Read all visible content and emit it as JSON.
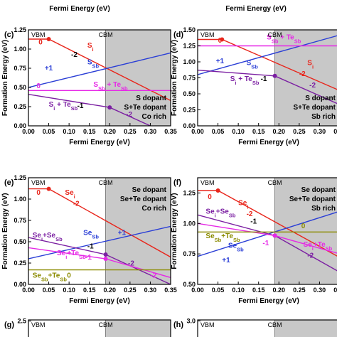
{
  "top_strip": {
    "xlabel": "Fermi Energy (eV)"
  },
  "chart_data": [
    {
      "panel": "(c)",
      "type": "line",
      "xlabel": "Fermi Energy (eV)",
      "ylabel": "Formation Energy (eV)",
      "xlim": [
        0,
        0.35
      ],
      "ylim": [
        0,
        1.25
      ],
      "xticks": [
        "0.00",
        "0.05",
        "0.10",
        "0.15",
        "0.20",
        "0.25",
        "0.30",
        "0.35"
      ],
      "yticks": [
        "0.00",
        "0.25",
        "0.50",
        "0.75",
        "1.00",
        "1.25"
      ],
      "vbm_label": "VBM",
      "cbm_label": "CBM",
      "cbm_x": 0.19,
      "grid": false,
      "notes": [
        "S dopant",
        "S+Te dopant",
        "Co rich"
      ],
      "notes_anchor": "bottom-right",
      "series": [
        {
          "name": "Si",
          "color": "#e8261c",
          "points": [
            [
              0,
              1.13
            ],
            [
              0.05,
              1.13
            ],
            [
              0.35,
              0.33
            ]
          ],
          "markers": [
            [
              0.05,
              1.13
            ]
          ],
          "labels": [
            {
              "text": "Si",
              "x": 0.145,
              "y": 1.02,
              "color": "#e8261c"
            },
            {
              "text": "0",
              "x": 0.025,
              "y": 1.06,
              "color": "#e8261c"
            },
            {
              "text": "-2",
              "x": 0.105,
              "y": 0.9,
              "color": "#000000"
            }
          ]
        },
        {
          "name": "SSb",
          "color": "#2a3ed6",
          "points": [
            [
              0,
              0.5
            ],
            [
              0.35,
              0.95
            ]
          ],
          "markers": [],
          "labels": [
            {
              "text": "SSb",
              "x": 0.145,
              "y": 0.8,
              "color": "#2a3ed6"
            },
            {
              "text": "+1",
              "x": 0.04,
              "y": 0.72,
              "color": "#2a3ed6"
            }
          ]
        },
        {
          "name": "SSb + TeSb",
          "color": "#e628e6",
          "points": [
            [
              0,
              0.46
            ],
            [
              0.35,
              0.46
            ]
          ],
          "markers": [],
          "labels": [
            {
              "text": "SSb + TeSb",
              "x": 0.16,
              "y": 0.51,
              "color": "#e628e6"
            },
            {
              "text": "0",
              "x": 0.02,
              "y": 0.49,
              "color": "#e628e6"
            }
          ]
        },
        {
          "name": "Si + TeSb",
          "color": "#7b1fa2",
          "points": [
            [
              0,
              0.41
            ],
            [
              0.2,
              0.24
            ],
            [
              0.3,
              0.0
            ]
          ],
          "markers": [
            [
              0.2,
              0.24
            ]
          ],
          "labels": [
            {
              "text": "Si + TeSb",
              "x": 0.05,
              "y": 0.25,
              "color": "#7b1fa2"
            },
            {
              "text": "-1",
              "x": 0.12,
              "y": 0.23,
              "color": "#000000"
            },
            {
              "text": "-2",
              "x": 0.24,
              "y": 0.12,
              "color": "#7b1fa2"
            }
          ]
        }
      ]
    },
    {
      "panel": "(d)",
      "type": "line",
      "xlabel": "Fermi Energy (eV)",
      "ylabel": "Formation Energy (eV)",
      "xlim": [
        0,
        0.35
      ],
      "ylim": [
        0,
        1.5
      ],
      "xticks": [
        "0.00",
        "0.05",
        "0.10",
        "0.15",
        "0.20",
        "0.25",
        "0.30",
        "0.35"
      ],
      "yticks": [
        "0.00",
        "0.25",
        "0.50",
        "0.75",
        "1.00",
        "1.25",
        "1.50"
      ],
      "vbm_label": "VBM",
      "cbm_label": "CBM",
      "cbm_x": 0.19,
      "grid": false,
      "notes": [
        "S dopant",
        "S+Te dopant",
        "Sb rich"
      ],
      "notes_anchor": "bottom-right",
      "series": [
        {
          "name": "Si",
          "color": "#e8261c",
          "points": [
            [
              0,
              1.35
            ],
            [
              0.06,
              1.35
            ],
            [
              0.35,
              0.55
            ]
          ],
          "markers": [
            [
              0.06,
              1.35
            ]
          ],
          "labels": [
            {
              "text": "Si",
              "x": 0.27,
              "y": 0.95,
              "color": "#e8261c"
            },
            {
              "text": "0",
              "x": 0.05,
              "y": 1.3,
              "color": "#e8261c"
            },
            {
              "text": "-2",
              "x": 0.25,
              "y": 0.78,
              "color": "#e8261c"
            }
          ]
        },
        {
          "name": "SSb",
          "color": "#2a3ed6",
          "points": [
            [
              0,
              0.8
            ],
            [
              0.35,
              1.42
            ]
          ],
          "markers": [],
          "labels": [
            {
              "text": "SSb",
              "x": 0.12,
              "y": 0.95,
              "color": "#2a3ed6"
            },
            {
              "text": "+1",
              "x": 0.045,
              "y": 0.98,
              "color": "#2a3ed6"
            }
          ]
        },
        {
          "name": "SSb + TeSb",
          "color": "#e628e6",
          "points": [
            [
              0,
              1.25
            ],
            [
              0.35,
              1.25
            ]
          ],
          "markers": [],
          "labels": [
            {
              "text": "SSb + TeSb",
              "x": 0.17,
              "y": 1.35,
              "color": "#e628e6"
            }
          ]
        },
        {
          "name": "Si + TeSb",
          "color": "#7b1fa2",
          "points": [
            [
              0,
              0.87
            ],
            [
              0.19,
              0.78
            ],
            [
              0.35,
              0.33
            ]
          ],
          "markers": [
            [
              0.19,
              0.78
            ]
          ],
          "labels": [
            {
              "text": "Si + TeSb",
              "x": 0.08,
              "y": 0.7,
              "color": "#7b1fa2"
            },
            {
              "text": "-1",
              "x": 0.155,
              "y": 0.7,
              "color": "#000000"
            },
            {
              "text": "-2",
              "x": 0.275,
              "y": 0.6,
              "color": "#7b1fa2"
            }
          ]
        }
      ]
    },
    {
      "panel": "(e)",
      "type": "line",
      "xlabel": "Fermi Energy (eV)",
      "ylabel": "Formation Energy (eV)",
      "xlim": [
        0,
        0.35
      ],
      "ylim": [
        0,
        1.25
      ],
      "xticks": [
        "0.00",
        "0.05",
        "0.10",
        "0.15",
        "0.20",
        "0.25",
        "0.30",
        "0.35"
      ],
      "yticks": [
        "0.00",
        "0.25",
        "0.50",
        "0.75",
        "1.00",
        "1.25"
      ],
      "vbm_label": "VBM",
      "cbm_label": "CBM",
      "cbm_x": 0.19,
      "grid": false,
      "notes": [
        "Se dopant",
        "Se+Te dopant",
        "Co rich"
      ],
      "notes_anchor": "top-right",
      "series": [
        {
          "name": "Sei",
          "color": "#e8261c",
          "points": [
            [
              0,
              1.12
            ],
            [
              0.05,
              1.12
            ],
            [
              0.35,
              0.32
            ]
          ],
          "markers": [
            [
              0.05,
              1.12
            ]
          ],
          "labels": [
            {
              "text": "Sei",
              "x": 0.09,
              "y": 1.05,
              "color": "#e8261c"
            },
            {
              "text": "0",
              "x": 0.02,
              "y": 1.05,
              "color": "#e8261c"
            },
            {
              "text": "-2",
              "x": 0.11,
              "y": 0.92,
              "color": "#e8261c"
            }
          ]
        },
        {
          "name": "SeSb",
          "color": "#2a3ed6",
          "points": [
            [
              0,
              0.3
            ],
            [
              0.35,
              0.68
            ]
          ],
          "markers": [],
          "labels": [
            {
              "text": "SeSb",
              "x": 0.135,
              "y": 0.58,
              "color": "#2a3ed6"
            },
            {
              "text": "+1",
              "x": 0.22,
              "y": 0.58,
              "color": "#2a3ed6"
            }
          ]
        },
        {
          "name": "Sei+SeSb",
          "color": "#7b1fa2",
          "points": [
            [
              0,
              0.55
            ],
            [
              0.19,
              0.35
            ],
            [
              0.35,
              0.0
            ]
          ],
          "markers": [
            [
              0.19,
              0.35
            ]
          ],
          "labels": [
            {
              "text": "Sei+SeSb",
              "x": 0.01,
              "y": 0.55,
              "color": "#7b1fa2"
            },
            {
              "text": "-1",
              "x": 0.145,
              "y": 0.42,
              "color": "#000000"
            },
            {
              "text": "-2",
              "x": 0.245,
              "y": 0.22,
              "color": "#7b1fa2"
            }
          ]
        },
        {
          "name": "Sei+TeSb",
          "color": "#e628e6",
          "points": [
            [
              0,
              0.43
            ],
            [
              0.19,
              0.3
            ],
            [
              0.35,
              0.08
            ]
          ],
          "markers": [
            [
              0.19,
              0.3
            ]
          ],
          "labels": [
            {
              "text": "Sei+TeSb",
              "x": 0.07,
              "y": 0.34,
              "color": "#e628e6"
            },
            {
              "text": "-1",
              "x": 0.14,
              "y": 0.29,
              "color": "#e628e6"
            },
            {
              "text": "-2",
              "x": 0.3,
              "y": 0.08,
              "color": "#e628e6"
            }
          ]
        },
        {
          "name": "SeSb+TeSb",
          "color": "#8b8b00",
          "points": [
            [
              0,
              0.17
            ],
            [
              0.35,
              0.17
            ]
          ],
          "markers": [],
          "labels": [
            {
              "text": "SeSb+TeSb",
              "x": 0.01,
              "y": 0.08,
              "color": "#8b8b00"
            },
            {
              "text": "0",
              "x": 0.095,
              "y": 0.08,
              "color": "#8b8b00"
            }
          ]
        }
      ]
    },
    {
      "panel": "(f)",
      "type": "line",
      "xlabel": "Fermi Energy (eV)",
      "ylabel": "Formation Energy (eV)",
      "xlim": [
        0,
        0.35
      ],
      "ylim": [
        0.5,
        1.375
      ],
      "xticks": [
        "0.00",
        "0.05",
        "0.10",
        "0.15",
        "0.20",
        "0.25",
        "0.30",
        "0.35"
      ],
      "yticks": [
        "0.50",
        "0.75",
        "1.00",
        "1.25"
      ],
      "vbm_label": "VBM",
      "cbm_label": "CBM",
      "cbm_x": 0.19,
      "grid": false,
      "notes": [
        "Se dopant",
        "Se+Te dopant",
        "Sb rich"
      ],
      "notes_anchor": "top-right",
      "series": [
        {
          "name": "Sei",
          "color": "#e8261c",
          "points": [
            [
              0,
              1.27
            ],
            [
              0.05,
              1.27
            ],
            [
              0.35,
              0.72
            ]
          ],
          "markers": [
            [
              0.05,
              1.27
            ]
          ],
          "labels": [
            {
              "text": "Sei",
              "x": 0.1,
              "y": 1.15,
              "color": "#e8261c"
            },
            {
              "text": "0",
              "x": 0.025,
              "y": 1.2,
              "color": "#e8261c"
            },
            {
              "text": "-2",
              "x": 0.12,
              "y": 1.06,
              "color": "#e8261c"
            }
          ]
        },
        {
          "name": "SeSb",
          "color": "#2a3ed6",
          "points": [
            [
              0,
              0.73
            ],
            [
              0.35,
              1.1
            ]
          ],
          "markers": [],
          "labels": [
            {
              "text": "SeSb",
              "x": 0.075,
              "y": 0.8,
              "color": "#2a3ed6"
            },
            {
              "text": "+1",
              "x": 0.06,
              "y": 0.68,
              "color": "#2a3ed6"
            }
          ]
        },
        {
          "name": "Sei+SeSb",
          "color": "#7b1fa2",
          "points": [
            [
              0,
              1.07
            ],
            [
              0.19,
              0.9
            ],
            [
              0.35,
              0.6
            ]
          ],
          "markers": [
            [
              0.19,
              0.9
            ]
          ],
          "labels": [
            {
              "text": "Sei+SeSb",
              "x": 0.02,
              "y": 1.08,
              "color": "#7b1fa2"
            },
            {
              "text": "-1",
              "x": 0.13,
              "y": 1.0,
              "color": "#000000"
            },
            {
              "text": "-2",
              "x": 0.27,
              "y": 0.72,
              "color": "#7b1fa2"
            }
          ]
        },
        {
          "name": "Sei+TeSb",
          "color": "#e628e6",
          "points": [
            [
              0,
              1.0
            ],
            [
              0.19,
              0.9
            ],
            [
              0.35,
              0.75
            ]
          ],
          "markers": [
            [
              0.19,
              0.9
            ]
          ],
          "labels": [
            {
              "text": "Sei+TeSb",
              "x": 0.26,
              "y": 0.81,
              "color": "#e628e6"
            },
            {
              "text": "-1",
              "x": 0.16,
              "y": 0.82,
              "color": "#e628e6"
            }
          ]
        },
        {
          "name": "SeSb+TeSb",
          "color": "#8b8b00",
          "points": [
            [
              0,
              0.93
            ],
            [
              0.35,
              0.93
            ]
          ],
          "markers": [],
          "labels": [
            {
              "text": "SeSb+TeSb",
              "x": 0.02,
              "y": 0.88,
              "color": "#8b8b00"
            },
            {
              "text": "0",
              "x": 0.255,
              "y": 0.96,
              "color": "#8b8b00"
            }
          ]
        }
      ]
    },
    {
      "panel": "(g)",
      "type": "line",
      "ylim": [
        0,
        2.6
      ],
      "yticks": [
        "2.5"
      ],
      "vbm_label": "VBM",
      "cbm_label": "CBM",
      "cbm_x": 0.19,
      "series": []
    },
    {
      "panel": "(h)",
      "type": "line",
      "ylim": [
        0,
        3.1
      ],
      "yticks": [
        "3.0"
      ],
      "vbm_label": "VBM",
      "cbm_label": "CBM",
      "cbm_x": 0.19,
      "series": []
    }
  ]
}
